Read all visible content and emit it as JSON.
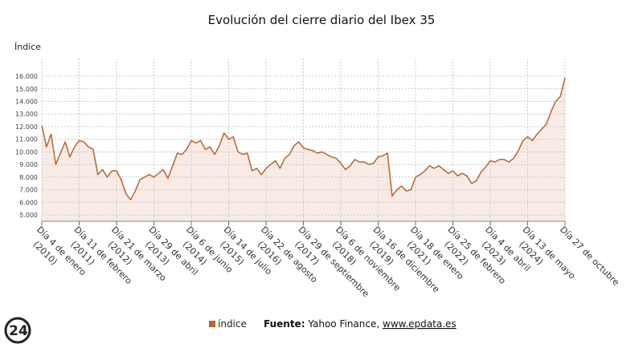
{
  "chart_data": {
    "type": "line",
    "title": "Evolución del cierre diario del Ibex 35",
    "y_label": "Índice",
    "source_label": "Fuente:",
    "source_text": "Yahoo Finance,",
    "source_link": "www.epdata.es",
    "logo": "24",
    "categories": [
      "Día 4 de enero",
      null,
      null,
      null,
      null,
      null,
      null,
      null,
      "Día 11 de febrero",
      null,
      null,
      null,
      null,
      null,
      null,
      null,
      "Día 21 de marzo",
      null,
      null,
      null,
      null,
      null,
      null,
      null,
      "Día 29 de abril",
      null,
      null,
      null,
      null,
      null,
      null,
      null,
      "Día 6 de junio",
      null,
      null,
      null,
      null,
      null,
      null,
      null,
      "Día 14 de julio",
      null,
      null,
      null,
      null,
      null,
      null,
      null,
      "Día 22 de agosto",
      null,
      null,
      null,
      null,
      null,
      null,
      null,
      "Día 29 de septiembre",
      null,
      null,
      null,
      null,
      null,
      null,
      null,
      "Día 6 de noviembre",
      null,
      null,
      null,
      null,
      null,
      null,
      null,
      "Día 16 de diciembre",
      null,
      null,
      null,
      null,
      null,
      null,
      null,
      "Día 18 de enero",
      null,
      null,
      null,
      null,
      null,
      null,
      null,
      "Día 25 de febrero",
      null,
      null,
      null,
      null,
      null,
      null,
      null,
      "Día 4 de abril",
      null,
      null,
      null,
      null,
      null,
      null,
      null,
      "Día 13 de mayo",
      null,
      null,
      null,
      null,
      null,
      null,
      null,
      "Día 27 de octubre"
    ],
    "category_years": [
      "(2010)",
      null,
      null,
      null,
      null,
      null,
      null,
      null,
      "(2011)",
      null,
      null,
      null,
      null,
      null,
      null,
      null,
      "(2012)",
      null,
      null,
      null,
      null,
      null,
      null,
      null,
      "(2013)",
      null,
      null,
      null,
      null,
      null,
      null,
      null,
      "(2014)",
      null,
      null,
      null,
      null,
      null,
      null,
      null,
      "(2015)",
      null,
      null,
      null,
      null,
      null,
      null,
      null,
      "(2016)",
      null,
      null,
      null,
      null,
      null,
      null,
      null,
      "(2017)",
      null,
      null,
      null,
      null,
      null,
      null,
      null,
      "(2018)",
      null,
      null,
      null,
      null,
      null,
      null,
      null,
      "(2019)",
      null,
      null,
      null,
      null,
      null,
      null,
      null,
      "(2021)",
      null,
      null,
      null,
      null,
      null,
      null,
      null,
      "(2022)",
      null,
      null,
      null,
      null,
      null,
      null,
      null,
      "(2023)",
      null,
      null,
      null,
      null,
      null,
      null,
      null,
      "(2024)",
      null,
      null,
      null,
      null,
      null,
      null,
      null,
      null
    ],
    "series": [
      {
        "name": "índice",
        "color": "#b8652f",
        "area_color": "#f8ebe5",
        "values": [
          12100,
          10400,
          11400,
          9000,
          9900,
          10800,
          9600,
          10400,
          10900,
          10800,
          10400,
          10200,
          8200,
          8600,
          8000,
          8500,
          8500,
          7800,
          6700,
          6200,
          6900,
          7800,
          8000,
          8200,
          8000,
          8300,
          8600,
          7900,
          8900,
          9900,
          9800,
          10200,
          10900,
          10700,
          10900,
          10200,
          10400,
          9800,
          10500,
          11500,
          11000,
          11200,
          10000,
          9800,
          9900,
          8500,
          8700,
          8200,
          8700,
          9000,
          9300,
          8700,
          9500,
          9800,
          10500,
          10800,
          10300,
          10200,
          10100,
          9900,
          10000,
          9800,
          9600,
          9500,
          9100,
          8600,
          8900,
          9400,
          9200,
          9200,
          9000,
          9100,
          9600,
          9700,
          9900,
          6500,
          7000,
          7300,
          6900,
          7000,
          8000,
          8200,
          8500,
          8900,
          8700,
          8900,
          8600,
          8300,
          8500,
          8100,
          8300,
          8100,
          7500,
          7700,
          8400,
          8800,
          9300,
          9200,
          9400,
          9400,
          9200,
          9500,
          10100,
          10900,
          11200,
          10900,
          11400,
          11800,
          12200,
          13200,
          14000,
          14400,
          15900
        ]
      }
    ],
    "ylim": [
      4500,
      17400
    ],
    "yticks": [
      {
        "value": 5000,
        "label": "5.000"
      },
      {
        "value": 6000,
        "label": "6.000"
      },
      {
        "value": 7000,
        "label": "7.000"
      },
      {
        "value": 8000,
        "label": "8.000"
      },
      {
        "value": 9000,
        "label": "9.000"
      },
      {
        "value": 10000,
        "label": "10.000"
      },
      {
        "value": 11000,
        "label": "11.000"
      },
      {
        "value": 12000,
        "label": "12.000"
      },
      {
        "value": 13000,
        "label": "13.000"
      },
      {
        "value": 14000,
        "label": "14.000"
      },
      {
        "value": 15000,
        "label": "15.000"
      },
      {
        "value": 16000,
        "label": "16.000"
      }
    ],
    "grid": true
  }
}
